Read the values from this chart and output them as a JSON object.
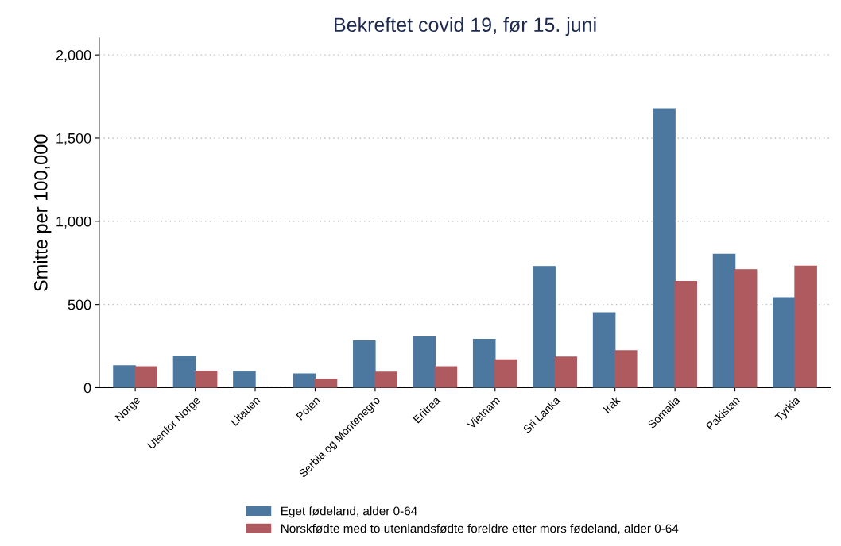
{
  "chart_data": {
    "type": "bar",
    "title": "Bekreftet covid 19, før 15. juni",
    "ylabel": "Smitte per 100,000",
    "categories": [
      "Norge",
      "Utenfor Norge",
      "Litauen",
      "Polen",
      "Serbia og Montenegro",
      "Eritrea",
      "Vietnam",
      "Sri Lanka",
      "Irak",
      "Somalia",
      "Pakistan",
      "Tyrkia"
    ],
    "series": [
      {
        "name": "Eget fødeland, alder 0-64",
        "color": "#4c78a0",
        "values": [
          131,
          189,
          97,
          83,
          280,
          304,
          290,
          728,
          450,
          1675,
          802,
          540
        ]
      },
      {
        "name": "Norskfødte med to utenlandsfødte foreldre etter mors fødeland, alder 0-64",
        "color": "#ae5a5e",
        "values": [
          125,
          99,
          null,
          52,
          93,
          125,
          167,
          184,
          222,
          638,
          709,
          730
        ]
      }
    ],
    "ylim": [
      0,
      2100
    ],
    "yticks": [
      0,
      500,
      {
        "value": 1000,
        "label": "1,000"
      },
      {
        "value": 1500,
        "label": "1,500"
      },
      {
        "value": 2000,
        "label": "2,000"
      }
    ],
    "grid": "y",
    "legend": "bottom"
  }
}
